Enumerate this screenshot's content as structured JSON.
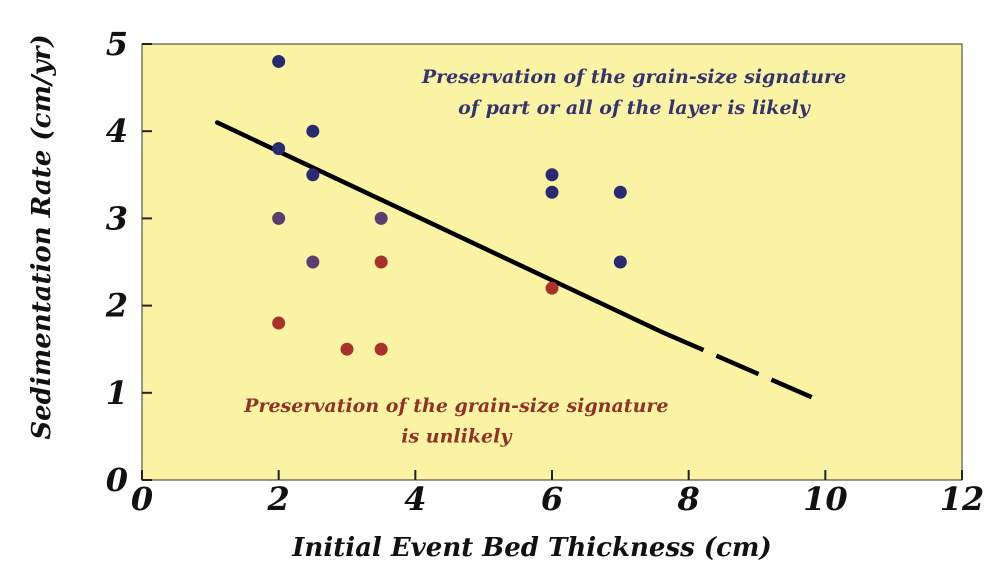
{
  "chart_data": {
    "type": "scatter",
    "xlabel": "Initial Event Bed Thickness (cm)",
    "ylabel": "Sedimentation Rate (cm/yr)",
    "xlim": [
      0,
      12
    ],
    "ylim": [
      0,
      5
    ],
    "x_ticks": [
      "0",
      "2",
      "4",
      "6",
      "8",
      "10",
      "12"
    ],
    "y_ticks": [
      "0",
      "1",
      "2",
      "3",
      "4",
      "5"
    ],
    "grid": false,
    "colors": {
      "background": "#fbf3a4",
      "preserved": "#2a2a72",
      "transition": "#5a3f6e",
      "unlikely": "#a8322a",
      "line": "#000000",
      "annotation_top": "#33336e",
      "annotation_bottom": "#8e3326"
    },
    "series": [
      {
        "group": "preserved",
        "points": [
          [
            2,
            4.8
          ],
          [
            2.5,
            4.0
          ],
          [
            2,
            3.8
          ],
          [
            2.5,
            3.5
          ],
          [
            6,
            3.5
          ],
          [
            6,
            3.3
          ],
          [
            7,
            3.3
          ],
          [
            7,
            2.5
          ]
        ]
      },
      {
        "group": "transition",
        "points": [
          [
            2,
            3.0
          ],
          [
            3.5,
            3.0
          ],
          [
            2.5,
            2.5
          ]
        ]
      },
      {
        "group": "unlikely",
        "points": [
          [
            3.5,
            2.5
          ],
          [
            6,
            2.2
          ],
          [
            2,
            1.8
          ],
          [
            3,
            1.5
          ],
          [
            3.5,
            1.5
          ]
        ]
      }
    ],
    "boundary_line": {
      "solid": [
        [
          1.1,
          4.1
        ],
        [
          7.6,
          1.7
        ]
      ],
      "dashed": [
        [
          7.6,
          1.7
        ],
        [
          9.8,
          0.95
        ]
      ]
    },
    "annotations": [
      {
        "id": "top",
        "lines": [
          "Preservation of the grain-size signature",
          "of part or all of the layer is likely"
        ],
        "x": [
          7.2,
          7.2
        ],
        "y": [
          4.55,
          4.2
        ],
        "color_key": "annotation_top"
      },
      {
        "id": "bottom",
        "lines": [
          "Preservation of the grain-size signature",
          "is unlikely"
        ],
        "x": [
          4.6,
          4.6
        ],
        "y": [
          0.78,
          0.43
        ],
        "color_key": "annotation_bottom"
      }
    ]
  }
}
